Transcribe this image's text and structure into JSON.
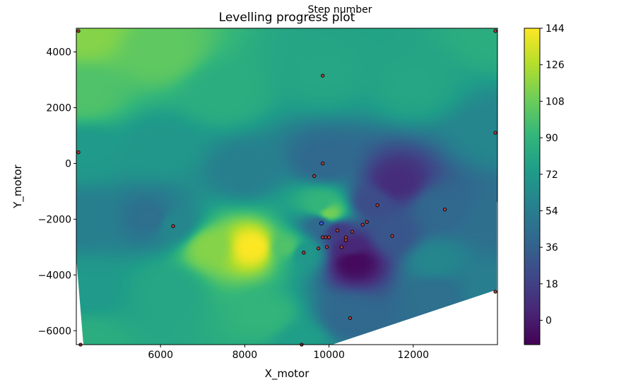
{
  "chart_data": {
    "type": "heatmap",
    "title": "Levelling progress plot",
    "top_label": "Step number",
    "xlabel": "X_motor",
    "ylabel": "Y_motor",
    "xlim": [
      4000,
      14000
    ],
    "ylim": [
      -6500,
      4850
    ],
    "x_ticks": [
      6000,
      8000,
      10000,
      12000
    ],
    "x_tick_labels": [
      "6000",
      "8000",
      "10000",
      "12000"
    ],
    "y_ticks": [
      -6000,
      -4000,
      -2000,
      0,
      2000,
      4000
    ],
    "y_tick_labels": [
      "−6000",
      "−4000",
      "−2000",
      "0",
      "2000",
      "4000"
    ],
    "colorbar": {
      "min": -12,
      "max": 144,
      "ticks": [
        0,
        18,
        36,
        54,
        72,
        90,
        108,
        126,
        144
      ],
      "tick_labels": [
        "0",
        "18",
        "36",
        "54",
        "72",
        "90",
        "108",
        "126",
        "144"
      ],
      "colormap": [
        "#440154",
        "#482878",
        "#3e4989",
        "#31688e",
        "#26828e",
        "#1f9e89",
        "#35b779",
        "#6ece58",
        "#b5de2b",
        "#fde725"
      ]
    },
    "surface_control_points": [
      {
        "x": 4200,
        "y": 4700,
        "value": 115
      },
      {
        "x": 4200,
        "y": 2500,
        "value": 100
      },
      {
        "x": 4200,
        "y": 400,
        "value": 72
      },
      {
        "x": 4200,
        "y": -2000,
        "value": 55
      },
      {
        "x": 4200,
        "y": -4500,
        "value": 72
      },
      {
        "x": 4200,
        "y": -6400,
        "value": 85
      },
      {
        "x": 6000,
        "y": 4000,
        "value": 105
      },
      {
        "x": 6000,
        "y": 500,
        "value": 70
      },
      {
        "x": 5800,
        "y": -2000,
        "value": 45
      },
      {
        "x": 6300,
        "y": -2200,
        "value": 60
      },
      {
        "x": 6200,
        "y": -4500,
        "value": 80
      },
      {
        "x": 7500,
        "y": 2500,
        "value": 85
      },
      {
        "x": 8000,
        "y": -300,
        "value": 55
      },
      {
        "x": 8200,
        "y": -3000,
        "value": 144
      },
      {
        "x": 7200,
        "y": -3000,
        "value": 115
      },
      {
        "x": 8500,
        "y": -5500,
        "value": 90
      },
      {
        "x": 9000,
        "y": -3000,
        "value": 100
      },
      {
        "x": 9300,
        "y": -6400,
        "value": 75
      },
      {
        "x": 9400,
        "y": -3200,
        "value": 70
      },
      {
        "x": 9800,
        "y": -1500,
        "value": 90
      },
      {
        "x": 9800,
        "y": -2150,
        "value": 40
      },
      {
        "x": 9900,
        "y": 3200,
        "value": 80
      },
      {
        "x": 9900,
        "y": 0,
        "value": 40
      },
      {
        "x": 10000,
        "y": -1800,
        "value": 110
      },
      {
        "x": 10200,
        "y": -2400,
        "value": 15
      },
      {
        "x": 10500,
        "y": -3000,
        "value": 5
      },
      {
        "x": 10600,
        "y": -3500,
        "value": -8
      },
      {
        "x": 10500,
        "y": -5500,
        "value": 40
      },
      {
        "x": 11000,
        "y": -1400,
        "value": 25
      },
      {
        "x": 11600,
        "y": -700,
        "value": 8
      },
      {
        "x": 11500,
        "y": -2600,
        "value": 30
      },
      {
        "x": 12000,
        "y": 2800,
        "value": 80
      },
      {
        "x": 12600,
        "y": -1600,
        "value": 40
      },
      {
        "x": 12500,
        "y": -3500,
        "value": 60
      },
      {
        "x": 12500,
        "y": -4700,
        "value": 45
      },
      {
        "x": 13900,
        "y": 4700,
        "value": 85
      },
      {
        "x": 13900,
        "y": 1100,
        "value": 60
      },
      {
        "x": 13900,
        "y": -2000,
        "value": 45
      },
      {
        "x": 13900,
        "y": -4600,
        "value": 55
      }
    ],
    "measurement_points": [
      {
        "x": 4050,
        "y": 4750
      },
      {
        "x": 4050,
        "y": 400
      },
      {
        "x": 4100,
        "y": -6500
      },
      {
        "x": 6300,
        "y": -2250
      },
      {
        "x": 9350,
        "y": -6500
      },
      {
        "x": 9400,
        "y": -3200
      },
      {
        "x": 9650,
        "y": -450
      },
      {
        "x": 9850,
        "y": 0
      },
      {
        "x": 9850,
        "y": 3150
      },
      {
        "x": 9750,
        "y": -3050
      },
      {
        "x": 9850,
        "y": -2650
      },
      {
        "x": 9920,
        "y": -2650
      },
      {
        "x": 10000,
        "y": -2650
      },
      {
        "x": 9950,
        "y": -3000
      },
      {
        "x": 10200,
        "y": -2400
      },
      {
        "x": 10300,
        "y": -3000
      },
      {
        "x": 10400,
        "y": -2650
      },
      {
        "x": 10400,
        "y": -2750
      },
      {
        "x": 10550,
        "y": -2450
      },
      {
        "x": 10500,
        "y": -5550
      },
      {
        "x": 10800,
        "y": -2200
      },
      {
        "x": 10900,
        "y": -2100
      },
      {
        "x": 11150,
        "y": -1500
      },
      {
        "x": 11500,
        "y": -2600
      },
      {
        "x": 12750,
        "y": -1650
      },
      {
        "x": 13950,
        "y": 1100
      },
      {
        "x": 13950,
        "y": 4750
      },
      {
        "x": 13950,
        "y": -4600
      }
    ],
    "current_point": {
      "x": 9820,
      "y": -2150
    }
  }
}
